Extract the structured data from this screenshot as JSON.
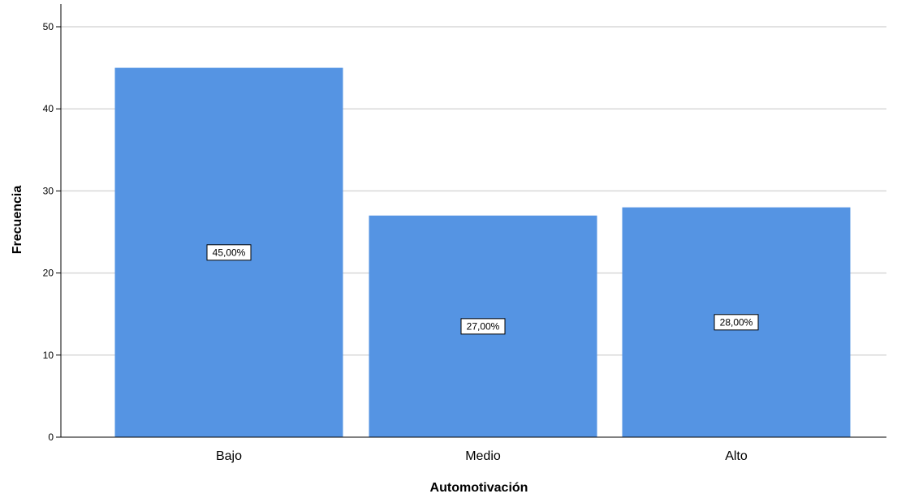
{
  "chart_data": {
    "type": "bar",
    "categories": [
      "Bajo",
      "Medio",
      "Alto"
    ],
    "values": [
      45,
      27,
      28
    ],
    "data_labels": [
      "45,00%",
      "27,00%",
      "28,00%"
    ],
    "xlabel": "Automotivación",
    "ylabel": "Frecuencia",
    "ylim": [
      0,
      52
    ],
    "yticks": [
      0,
      10,
      20,
      30,
      40,
      50
    ],
    "grid": true,
    "bar_color": "#5594e3",
    "grid_color": "#d9d9d9",
    "axis_color": "#000000"
  }
}
